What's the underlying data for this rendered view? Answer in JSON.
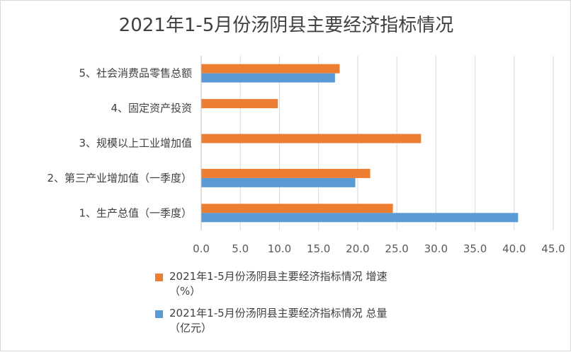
{
  "chart_data": {
    "type": "bar",
    "orientation": "horizontal",
    "title": "2021年1-5月份汤阴县主要经济指标情况",
    "categories": [
      "1、生产总值（一季度）",
      "2、第三产业增加值（一季度）",
      "3、规模以上工业增加值",
      "4、固定资产投资",
      "5、社会消费品零售总额"
    ],
    "series": [
      {
        "name": "2021年1-5月份汤阴县主要经济指标情况 增速（%）",
        "legend_lines": [
          "2021年1-5月份汤阴县主要经济指标情况 增速",
          "（%）"
        ],
        "color": "#ed7d31",
        "values": [
          24.5,
          21.6,
          28.1,
          9.8,
          17.7
        ]
      },
      {
        "name": "2021年1-5月份汤阴县主要经济指标情况 总量（亿元）",
        "legend_lines": [
          "2021年1-5月份汤阴县主要经济指标情况 总量",
          "（亿元）"
        ],
        "color": "#5b9bd5",
        "values": [
          40.5,
          19.7,
          null,
          null,
          17.1
        ]
      }
    ],
    "xlim": [
      0,
      45
    ],
    "xticks": [
      "0.0",
      "5.0",
      "10.0",
      "15.0",
      "20.0",
      "25.0",
      "30.0",
      "35.0",
      "40.0",
      "45.0"
    ],
    "grid": "vertical",
    "legend_position": "bottom"
  }
}
